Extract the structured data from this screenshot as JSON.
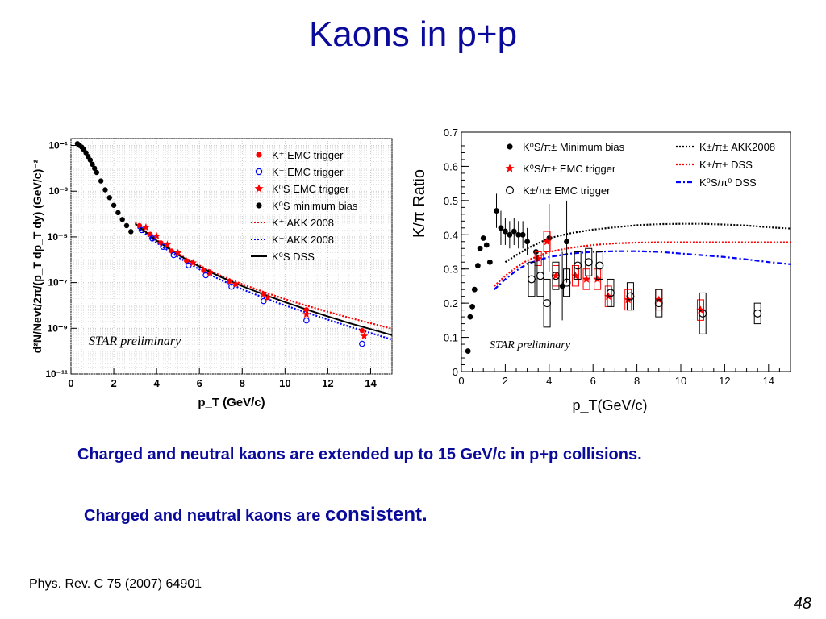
{
  "slide": {
    "title": "Kaons in p+p",
    "caption_1": "Charged and neutral kaons are extended up to 15 GeV/c in p+p collisions.",
    "caption_2_prefix": "Charged and neutral kaons  are ",
    "caption_2_emphasis": "consistent.",
    "reference": "Phys. Rev. C 75 (2007) 64901",
    "page_number": "48"
  },
  "colors": {
    "title": "#0a0a9b",
    "red": "#ff0000",
    "blue": "#0000ff",
    "black": "#000000"
  },
  "chart_data": [
    {
      "type": "scatter",
      "title": "",
      "xlabel": "p_T (GeV/c)",
      "ylabel": "d²N/Nevt/2π/(p_T dp_T dy) (GeV/c)⁻²",
      "xlim": [
        0,
        15
      ],
      "ylim": [
        1e-11,
        0.2
      ],
      "yscale": "log",
      "grid": true,
      "legend_position": "top-right",
      "annotation": "STAR preliminary",
      "x_ticks": [
        0,
        2,
        4,
        6,
        8,
        10,
        12,
        14
      ],
      "y_ticks": [
        {
          "value": 1e-11,
          "label": "10⁻¹¹"
        },
        {
          "value": 1e-09,
          "label": "10⁻⁹"
        },
        {
          "value": 1e-07,
          "label": "10⁻⁷"
        },
        {
          "value": 1e-05,
          "label": "10⁻⁵"
        },
        {
          "value": 0.001,
          "label": "10⁻³"
        },
        {
          "value": 0.1,
          "label": "10⁻¹"
        }
      ],
      "series": [
        {
          "name": "K⁺ EMC trigger",
          "marker": "circle-filled",
          "color": "#ff0000",
          "points": [
            [
              3.2,
              3.1e-05
            ],
            [
              3.7,
              1.3e-05
            ],
            [
              4.2,
              5.5e-06
            ],
            [
              4.7,
              2.4e-06
            ],
            [
              5.4,
              9e-07
            ],
            [
              6.2,
              3.4e-07
            ],
            [
              7.4,
              1.15e-07
            ],
            [
              9.0,
              3.2e-08
            ],
            [
              11.0,
              6.5e-09
            ],
            [
              13.6,
              8e-10
            ]
          ]
        },
        {
          "name": "K⁻ EMC trigger",
          "marker": "circle-open",
          "color": "#0000ff",
          "points": [
            [
              3.3,
              2e-05
            ],
            [
              3.8,
              8.6e-06
            ],
            [
              4.3,
              3.7e-06
            ],
            [
              4.8,
              1.6e-06
            ],
            [
              5.5,
              5.7e-07
            ],
            [
              6.3,
              2.1e-07
            ],
            [
              7.5,
              6.6e-08
            ],
            [
              9.0,
              1.55e-08
            ],
            [
              11.0,
              2.2e-09
            ],
            [
              13.6,
              2.1e-10
            ]
          ]
        },
        {
          "name": "K⁰S EMC trigger",
          "marker": "star",
          "color": "#ff0000",
          "points": [
            [
              3.5,
              2.6e-05
            ],
            [
              4.0,
              1.1e-05
            ],
            [
              4.5,
              4.6e-06
            ],
            [
              5.0,
              2e-06
            ],
            [
              5.7,
              7.3e-07
            ],
            [
              6.5,
              2.6e-07
            ],
            [
              7.7,
              8.7e-08
            ],
            [
              9.2,
              2.2e-08
            ],
            [
              11.0,
              4.1e-09
            ],
            [
              13.7,
              4.6e-10
            ]
          ]
        },
        {
          "name": "K⁰S minimum bias",
          "marker": "circle-filled",
          "color": "#000000",
          "points": [
            [
              0.3,
              0.12
            ],
            [
              0.4,
              0.1
            ],
            [
              0.5,
              0.085
            ],
            [
              0.6,
              0.066
            ],
            [
              0.7,
              0.048
            ],
            [
              0.8,
              0.033
            ],
            [
              0.9,
              0.023
            ],
            [
              1.0,
              0.015
            ],
            [
              1.1,
              0.01
            ],
            [
              1.2,
              0.0066
            ],
            [
              1.4,
              0.0028
            ],
            [
              1.6,
              0.00115
            ],
            [
              1.8,
              0.00052
            ],
            [
              2.0,
              0.00024
            ],
            [
              2.2,
              0.000115
            ],
            [
              2.4,
              5.8e-05
            ],
            [
              2.6,
              3.1e-05
            ],
            [
              2.8,
              1.7e-05
            ]
          ]
        },
        {
          "name": "K⁺ AKK 2008",
          "marker": "line-dotted",
          "color": "#ff0000",
          "points": [
            [
              3.0,
              4.2e-05
            ],
            [
              4.0,
              7.5e-06
            ],
            [
              5.0,
              1.8e-06
            ],
            [
              6.0,
              5.6e-07
            ],
            [
              7.0,
              2e-07
            ],
            [
              8.0,
              8.5e-08
            ],
            [
              9.0,
              3.9e-08
            ],
            [
              10.0,
              1.9e-08
            ],
            [
              11.0,
              9.8e-09
            ],
            [
              12.0,
              5.3e-09
            ],
            [
              13.0,
              2.9e-09
            ],
            [
              14.0,
              1.65e-09
            ],
            [
              15.0,
              9.6e-10
            ]
          ]
        },
        {
          "name": "K⁻ AKK 2008",
          "marker": "line-dotted",
          "color": "#0000ff",
          "points": [
            [
              3.0,
              3.2e-05
            ],
            [
              4.0,
              5.6e-06
            ],
            [
              5.0,
              1.3e-06
            ],
            [
              6.0,
              3.8e-07
            ],
            [
              7.0,
              1.3e-07
            ],
            [
              8.0,
              5.1e-08
            ],
            [
              9.0,
              2.2e-08
            ],
            [
              10.0,
              1e-08
            ],
            [
              11.0,
              4.9e-09
            ],
            [
              12.0,
              2.4e-09
            ],
            [
              13.0,
              1.2e-09
            ],
            [
              14.0,
              6.2e-10
            ],
            [
              15.0,
              3.2e-10
            ]
          ]
        },
        {
          "name": "K⁰S DSS",
          "marker": "line-solid",
          "color": "#000000",
          "points": [
            [
              3.0,
              3.8e-05
            ],
            [
              4.0,
              6.9e-06
            ],
            [
              5.0,
              1.65e-06
            ],
            [
              6.0,
              5e-07
            ],
            [
              7.0,
              1.75e-07
            ],
            [
              8.0,
              7e-08
            ],
            [
              9.0,
              3.05e-08
            ],
            [
              10.0,
              1.4e-08
            ],
            [
              11.0,
              6.7e-09
            ],
            [
              12.0,
              3.3e-09
            ],
            [
              13.0,
              1.7e-09
            ],
            [
              14.0,
              9.2e-10
            ],
            [
              15.0,
              5e-10
            ]
          ]
        }
      ]
    },
    {
      "type": "scatter",
      "title": "",
      "xlabel": "p_T(GeV/c)",
      "ylabel": "K/π Ratio",
      "xlim": [
        0,
        15
      ],
      "ylim": [
        0,
        0.7
      ],
      "grid": false,
      "legend_position": "top",
      "annotation": "STAR preliminary",
      "x_ticks": [
        0,
        2,
        4,
        6,
        8,
        10,
        12,
        14
      ],
      "y_ticks": [
        0,
        0.1,
        0.2,
        0.3,
        0.4,
        0.5,
        0.6,
        0.7
      ],
      "series": [
        {
          "name": "K⁰S/π± Minimum bias",
          "marker": "circle-filled",
          "color": "#000000",
          "points": [
            [
              0.3,
              0.06
            ],
            [
              0.4,
              0.16
            ],
            [
              0.5,
              0.19
            ],
            [
              0.6,
              0.24
            ],
            [
              0.75,
              0.31
            ],
            [
              0.85,
              0.36
            ],
            [
              1.0,
              0.39
            ],
            [
              1.15,
              0.37
            ],
            [
              1.3,
              0.32
            ],
            [
              1.6,
              0.47
            ],
            [
              1.8,
              0.42
            ],
            [
              2.0,
              0.41
            ],
            [
              2.2,
              0.4
            ],
            [
              2.4,
              0.41
            ],
            [
              2.6,
              0.4
            ],
            [
              2.8,
              0.4
            ],
            [
              3.0,
              0.38
            ],
            [
              3.4,
              0.35
            ],
            [
              4.0,
              0.39
            ],
            [
              4.6,
              0.25
            ],
            [
              4.8,
              0.38
            ]
          ],
          "errors": [
            0,
            0,
            0,
            0,
            0,
            0,
            0,
            0,
            0,
            0.05,
            0.05,
            0.04,
            0.04,
            0.04,
            0.04,
            0.04,
            0.04,
            0.06,
            0.1,
            0.1,
            0.12
          ]
        },
        {
          "name": "K⁰S/π± EMC trigger",
          "marker": "star",
          "color": "#ff0000",
          "points": [
            [
              3.5,
              0.33
            ],
            [
              3.9,
              0.38
            ],
            [
              4.3,
              0.28
            ],
            [
              5.2,
              0.28
            ],
            [
              5.7,
              0.27
            ],
            [
              6.2,
              0.27
            ],
            [
              6.7,
              0.22
            ],
            [
              7.6,
              0.21
            ],
            [
              9.0,
              0.21
            ],
            [
              10.9,
              0.18
            ]
          ],
          "errors": [
            0.02,
            0.03,
            0.03,
            0.03,
            0.03,
            0.03,
            0.03,
            0.03,
            0.03,
            0.03
          ]
        },
        {
          "name": "K±/π± EMC trigger",
          "marker": "circle-open",
          "color": "#000000",
          "points": [
            [
              3.2,
              0.27
            ],
            [
              3.6,
              0.28
            ],
            [
              3.9,
              0.2
            ],
            [
              4.3,
              0.28
            ],
            [
              4.8,
              0.26
            ],
            [
              5.3,
              0.31
            ],
            [
              5.8,
              0.32
            ],
            [
              6.3,
              0.31
            ],
            [
              6.8,
              0.23
            ],
            [
              7.7,
              0.22
            ],
            [
              9.0,
              0.2
            ],
            [
              11.0,
              0.17
            ],
            [
              13.5,
              0.17
            ]
          ],
          "errors": [
            0.05,
            0.06,
            0.07,
            0.04,
            0.04,
            0.04,
            0.04,
            0.04,
            0.04,
            0.04,
            0.04,
            0.06,
            0.03
          ]
        },
        {
          "name": "K±/π± AKK2008",
          "marker": "line-dotted",
          "color": "#000000",
          "points": [
            [
              2.0,
              0.32
            ],
            [
              3.0,
              0.36
            ],
            [
              4.0,
              0.39
            ],
            [
              5.0,
              0.405
            ],
            [
              6.0,
              0.415
            ],
            [
              7.0,
              0.422
            ],
            [
              8.0,
              0.428
            ],
            [
              9.0,
              0.431
            ],
            [
              10.0,
              0.432
            ],
            [
              11.0,
              0.432
            ],
            [
              12.0,
              0.43
            ],
            [
              13.0,
              0.427
            ],
            [
              14.0,
              0.422
            ],
            [
              15.0,
              0.418
            ]
          ]
        },
        {
          "name": "K±/π± DSS",
          "marker": "line-dotted",
          "color": "#ff0000",
          "points": [
            [
              1.5,
              0.25
            ],
            [
              2.0,
              0.28
            ],
            [
              2.5,
              0.305
            ],
            [
              3.0,
              0.325
            ],
            [
              4.0,
              0.35
            ],
            [
              5.0,
              0.362
            ],
            [
              6.0,
              0.37
            ],
            [
              7.0,
              0.375
            ],
            [
              8.0,
              0.377
            ],
            [
              9.0,
              0.378
            ],
            [
              10.0,
              0.378
            ],
            [
              12.0,
              0.378
            ],
            [
              14.0,
              0.378
            ],
            [
              15.0,
              0.378
            ]
          ]
        },
        {
          "name": "K⁰S/π⁰ DSS",
          "marker": "line-dashdot",
          "color": "#0000ff",
          "points": [
            [
              1.5,
              0.24
            ],
            [
              2.0,
              0.27
            ],
            [
              2.5,
              0.295
            ],
            [
              3.0,
              0.315
            ],
            [
              4.0,
              0.335
            ],
            [
              5.0,
              0.345
            ],
            [
              6.0,
              0.35
            ],
            [
              7.0,
              0.352
            ],
            [
              8.0,
              0.352
            ],
            [
              9.0,
              0.35
            ],
            [
              10.0,
              0.345
            ],
            [
              11.0,
              0.34
            ],
            [
              12.0,
              0.335
            ],
            [
              13.0,
              0.328
            ],
            [
              14.0,
              0.32
            ],
            [
              15.0,
              0.314
            ]
          ]
        }
      ]
    }
  ]
}
